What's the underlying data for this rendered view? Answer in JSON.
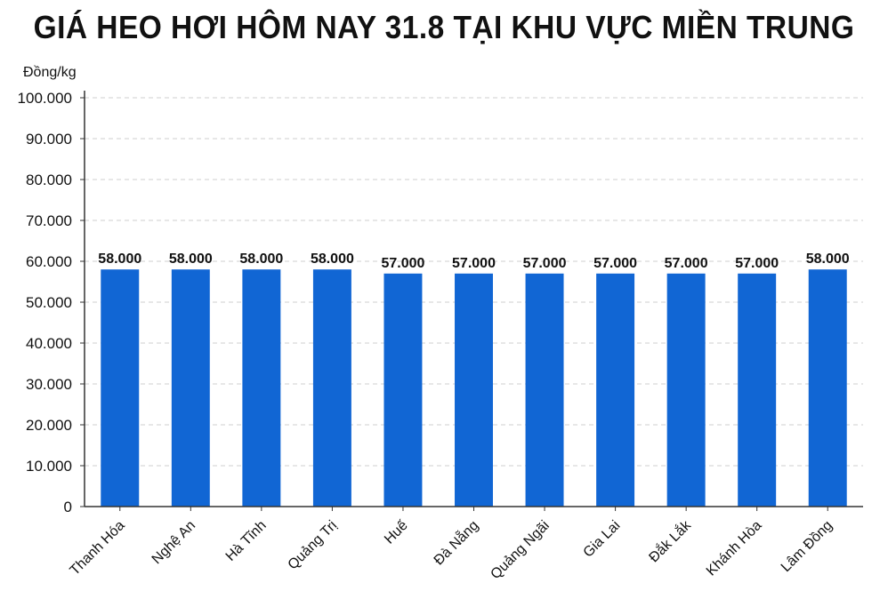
{
  "chart_data": {
    "type": "bar",
    "title": "GIÁ HEO HƠI HÔM NAY 31.8 TẠI KHU VỰC MIỀN TRUNG",
    "ylabel": "Đồng/kg",
    "xlabel": "",
    "ylim": [
      0,
      100000
    ],
    "yticks": [
      0,
      10000,
      20000,
      30000,
      40000,
      50000,
      60000,
      70000,
      80000,
      90000,
      100000
    ],
    "ytick_labels": [
      "0",
      "10.000",
      "20.000",
      "30.000",
      "40.000",
      "50.000",
      "60.000",
      "70.000",
      "80.000",
      "90.000",
      "100.000"
    ],
    "categories": [
      "Thanh Hóa",
      "Nghệ An",
      "Hà Tĩnh",
      "Quảng Trị",
      "Huế",
      "Đà Nẵng",
      "Quảng Ngãi",
      "Gia Lai",
      "Đắk Lắk",
      "Khánh Hòa",
      "Lâm Đồng"
    ],
    "values": [
      58000,
      58000,
      58000,
      58000,
      57000,
      57000,
      57000,
      57000,
      57000,
      57000,
      58000
    ],
    "value_labels": [
      "58.000",
      "58.000",
      "58.000",
      "58.000",
      "57.000",
      "57.000",
      "57.000",
      "57.000",
      "57.000",
      "57.000",
      "58.000"
    ],
    "bar_color": "#1166d4",
    "grid": true,
    "grid_style": "dashed horizontal",
    "legend": "none"
  }
}
